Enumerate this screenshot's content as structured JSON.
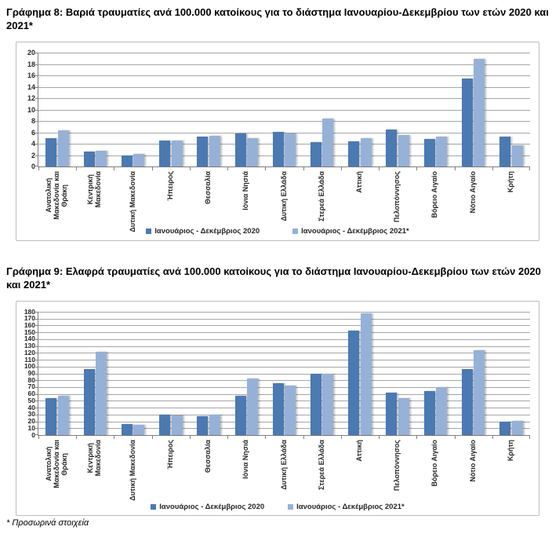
{
  "page": {
    "footnote": "* Προσωρινά στοιχεία"
  },
  "colors": {
    "series2020": "#4B79B2",
    "series2021": "#96B1D8",
    "gridline": "#a6a6a6",
    "axis": "#808080",
    "frame_border": "#bdbdbd",
    "text": "#262626"
  },
  "chart_data": [
    {
      "id": "grafima-8",
      "type": "bar",
      "title": "Γράφημα 8: Βαριά τραυματίες ανά 100.000 κατοίκους για το διάστημα Ιανουαρίου-Δεκεμβρίου των ετών 2020 και 2021*",
      "ylim": [
        0,
        20
      ],
      "ystep": 2,
      "grid": true,
      "legend_position": "bottom",
      "categories": [
        "Ανατολική Μακεδονία και Θράκη",
        "Κεντρική Μακεδονία",
        "Δυτική Μακεδονία",
        "Ήπειρος",
        "Θεσσαλία",
        "Ιόνια Νησιά",
        "Δυτική Ελλάδα",
        "Στερεά Ελλάδα",
        "Αττική",
        "Πελοπόννησος",
        "Βόρειο Αιγαίο",
        "Νότιο Αιγαίο",
        "Κρήτη"
      ],
      "category_lines": [
        [
          "Ανατολική",
          "Μακεδονία και",
          "Θράκη"
        ],
        [
          "Κεντρική",
          "Μακεδονία"
        ],
        [
          "Δυτική Μακεδονία"
        ],
        [
          "Ήπειρος"
        ],
        [
          "Θεσσαλία"
        ],
        [
          "Ιόνια Νησιά"
        ],
        [
          "Δυτική Ελλάδα"
        ],
        [
          "Στερεά Ελλάδα"
        ],
        [
          "Αττική"
        ],
        [
          "Πελοπόννησος"
        ],
        [
          "Βόρειο Αιγαίο"
        ],
        [
          "Νότιο Αιγαίο"
        ],
        [
          "Κρήτη"
        ]
      ],
      "series": [
        {
          "name": "Ιανουάριος - Δεκέμβριος 2020",
          "color_key": "series2020",
          "values": [
            5.0,
            2.6,
            1.9,
            4.5,
            5.3,
            5.8,
            6.1,
            4.3,
            4.4,
            6.5,
            4.8,
            15.4,
            5.3
          ]
        },
        {
          "name": "Ιανουάριος - Δεκέμβριος 2021*",
          "color_key": "series2021",
          "values": [
            6.3,
            2.8,
            2.2,
            4.5,
            5.4,
            4.9,
            5.8,
            8.4,
            4.9,
            5.5,
            5.2,
            18.9,
            3.7
          ]
        }
      ]
    },
    {
      "id": "grafima-9",
      "type": "bar",
      "title": "Γράφημα 9: Ελαφρά τραυματίες ανά 100.000 κατοίκους για το διάστημα Ιανουαρίου-Δεκεμβρίου των ετών 2020 και 2021*",
      "ylim": [
        0,
        180
      ],
      "ystep": 10,
      "grid": true,
      "legend_position": "bottom",
      "categories": [
        "Ανατολική Μακεδονία και Θράκη",
        "Κεντρική Μακεδονία",
        "Δυτική Μακεδονία",
        "Ήπειρος",
        "Θεσσαλία",
        "Ιόνια Νησιά",
        "Δυτική Ελλάδα",
        "Στερεά Ελλάδα",
        "Αττική",
        "Πελοπόννησος",
        "Βόρειο Αιγαίο",
        "Νότιο Αιγαίο",
        "Κρήτη"
      ],
      "category_lines": [
        [
          "Ανατολική",
          "Μακεδονία και",
          "Θράκη"
        ],
        [
          "Κεντρική",
          "Μακεδονία"
        ],
        [
          "Δυτική Μακεδονία"
        ],
        [
          "Ήπειρος"
        ],
        [
          "Θεσσαλία"
        ],
        [
          "Ιόνια Νησιά"
        ],
        [
          "Δυτική Ελλάδα"
        ],
        [
          "Στερεά Ελλάδα"
        ],
        [
          "Αττική"
        ],
        [
          "Πελοπόννησος"
        ],
        [
          "Βόρειο Αιγαίο"
        ],
        [
          "Νότιο Αιγαίο"
        ],
        [
          "Κρήτη"
        ]
      ],
      "series": [
        {
          "name": "Ιανουάριος - Δεκέμβριος 2020",
          "color_key": "series2020",
          "values": [
            54,
            96,
            16,
            30,
            28,
            57,
            76,
            89,
            152,
            62,
            64,
            96,
            19
          ]
        },
        {
          "name": "Ιανουάριος - Δεκέμβριος 2021*",
          "color_key": "series2021",
          "values": [
            57,
            121,
            15,
            29,
            30,
            82,
            72,
            90,
            178,
            54,
            70,
            124,
            21
          ]
        }
      ]
    }
  ]
}
